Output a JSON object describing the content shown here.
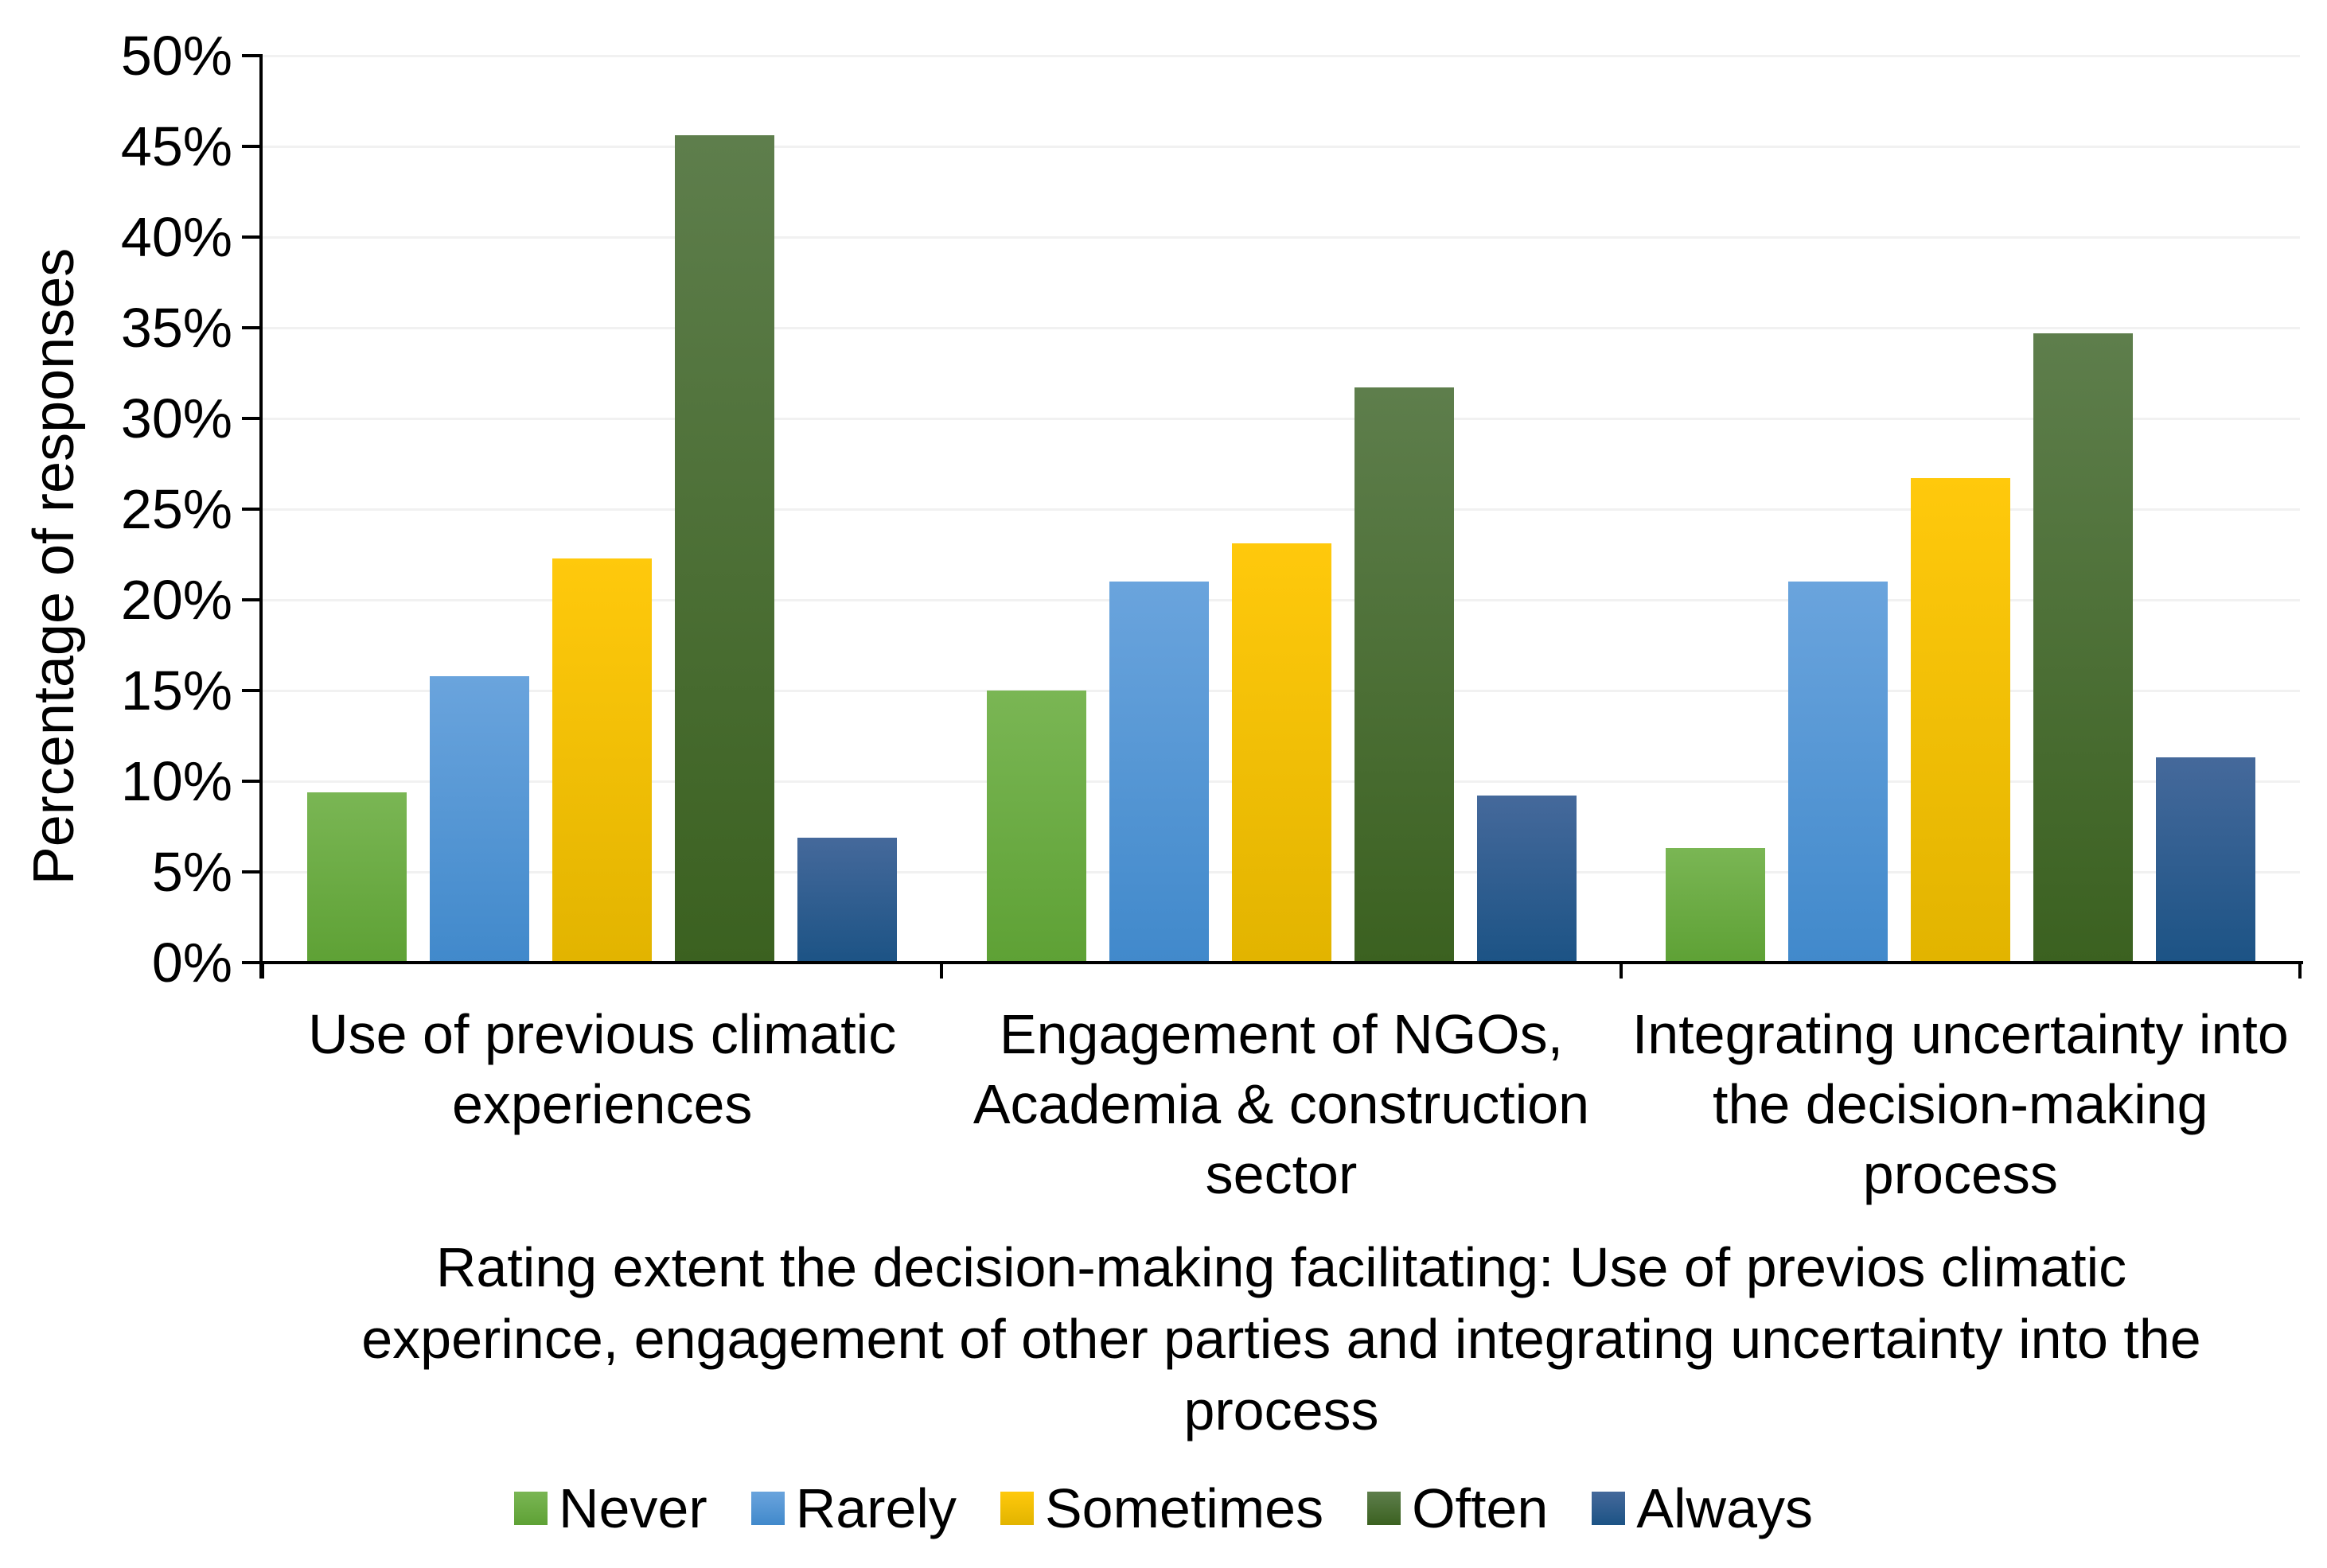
{
  "chart_data": {
    "type": "bar",
    "title": "",
    "ylabel": "Percentage of responses",
    "caption": "Rating extent the decision-making facilitating: Use of previos climatic\nexperince, engagement of other parties and integrating uncertainty into the\nprocess",
    "ylim": [
      0,
      50
    ],
    "ytick_step": 5,
    "ytick_labels": [
      "0%",
      "5%",
      "10%",
      "15%",
      "20%",
      "25%",
      "30%",
      "35%",
      "40%",
      "45%",
      "50%"
    ],
    "grid": true,
    "grid_color": "#f1f1f1",
    "axis_color": "#000000",
    "legend_position": "bottom",
    "categories": [
      "Use of previous climatic\nexperiences",
      "Engagement of NGOs,\nAcademia & construction\nsector",
      "Integrating uncertainty into\nthe decision-making\nprocess"
    ],
    "series": [
      {
        "name": "Never",
        "color": "#70ad47",
        "color_top": "#7ab654",
        "color_bottom": "#5ea135",
        "values": [
          9.4,
          15.0,
          6.3
        ]
      },
      {
        "name": "Rarely",
        "color": "#5b9bd5",
        "color_top": "#6aa4dd",
        "color_bottom": "#4189cb",
        "values": [
          15.8,
          21.0,
          21.0
        ]
      },
      {
        "name": "Sometimes",
        "color": "#ffc000",
        "color_top": "#ffc90c",
        "color_bottom": "#e2b400",
        "values": [
          22.3,
          23.1,
          26.7
        ]
      },
      {
        "name": "Often",
        "color": "#548235",
        "color_top": "#5e7e4c",
        "color_bottom": "#3b6120",
        "values": [
          45.6,
          31.7,
          34.7
        ]
      },
      {
        "name": "Always",
        "color": "#2e5e94",
        "color_top": "#45699b",
        "color_bottom": "#1c5385",
        "values": [
          6.9,
          9.2,
          11.3
        ]
      }
    ]
  }
}
